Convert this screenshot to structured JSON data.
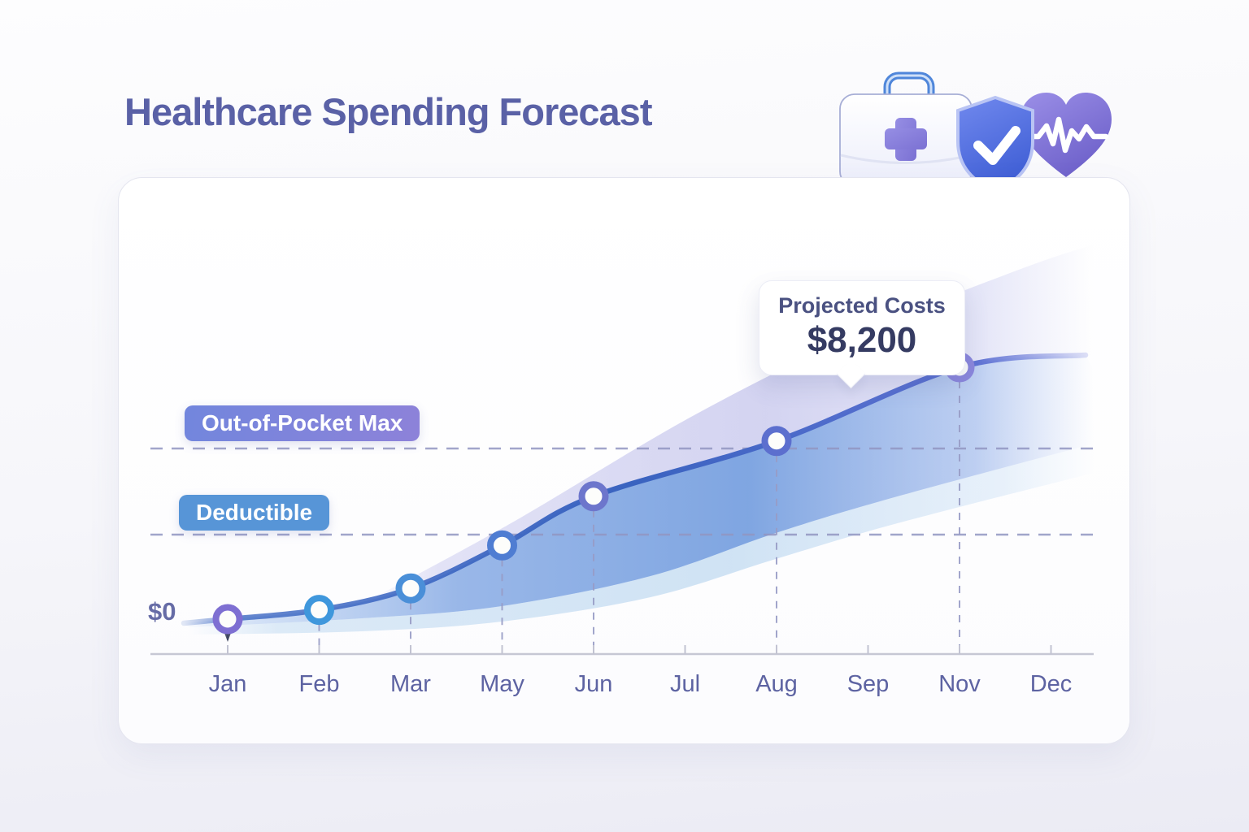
{
  "page": {
    "title": "Healthcare Spending Forecast"
  },
  "header_icons": [
    {
      "name": "medical-kit-icon"
    },
    {
      "name": "shield-check-icon"
    },
    {
      "name": "heart-pulse-icon"
    }
  ],
  "tooltip": {
    "label": "Projected Costs",
    "value": "$8,200"
  },
  "badges": {
    "out_of_pocket_max": "Out-of-Pocket Max",
    "deductible": "Deductible"
  },
  "y_axis": {
    "zero_label": "$0"
  },
  "chart_data": {
    "type": "line",
    "title": "Healthcare Spending Forecast",
    "x_tick_labels": [
      "Jan",
      "Feb",
      "Mar",
      "May",
      "Jun",
      "Jul",
      "Aug",
      "Sep",
      "Nov",
      "Dec"
    ],
    "series": [
      {
        "name": "Projected Costs",
        "points": [
          {
            "month": "Jan",
            "tick_index": 0,
            "value": 0,
            "ring_color": "#7e6fd2"
          },
          {
            "month": "Feb",
            "tick_index": 1,
            "value": 300,
            "ring_color": "#3f97dc"
          },
          {
            "month": "Mar",
            "tick_index": 2,
            "value": 1000,
            "ring_color": "#4a8fd8"
          },
          {
            "month": "May",
            "tick_index": 3,
            "value": 2400,
            "ring_color": "#4f7dd2"
          },
          {
            "month": "Jun",
            "tick_index": 4,
            "value": 4000,
            "ring_color": "#6d76cc"
          },
          {
            "month": "Aug",
            "tick_index": 6,
            "value": 5800,
            "ring_color": "#5c6fce"
          },
          {
            "month": "Nov",
            "tick_index": 8,
            "value": 8200,
            "ring_color": "#8b87dc"
          }
        ]
      }
    ],
    "annotations": [
      {
        "month": "Nov",
        "label": "Projected Costs",
        "value": "$8,200"
      }
    ],
    "reference_lines": [
      {
        "label": "Out-of-Pocket Max",
        "style": "dashed"
      },
      {
        "label": "Deductible",
        "style": "dashed"
      }
    ],
    "y_axis_visible_labels": [
      "$0"
    ],
    "legend": "none",
    "grid": "dashed droplines at data points",
    "colors": {
      "line": "#3a63c0",
      "area_fill": "#6f9bdb",
      "confidence_band": "#c9c9ec",
      "light_band": "#aecdea",
      "dashed_lines": "#9296c2",
      "axis": "#c6c7d4",
      "title_text": "#5a61a6",
      "tick_text": "#5d63a2",
      "deductible_badge": "#5795d7",
      "oop_badge_gradient": [
        "#7286dd",
        "#8d82d9"
      ]
    }
  }
}
